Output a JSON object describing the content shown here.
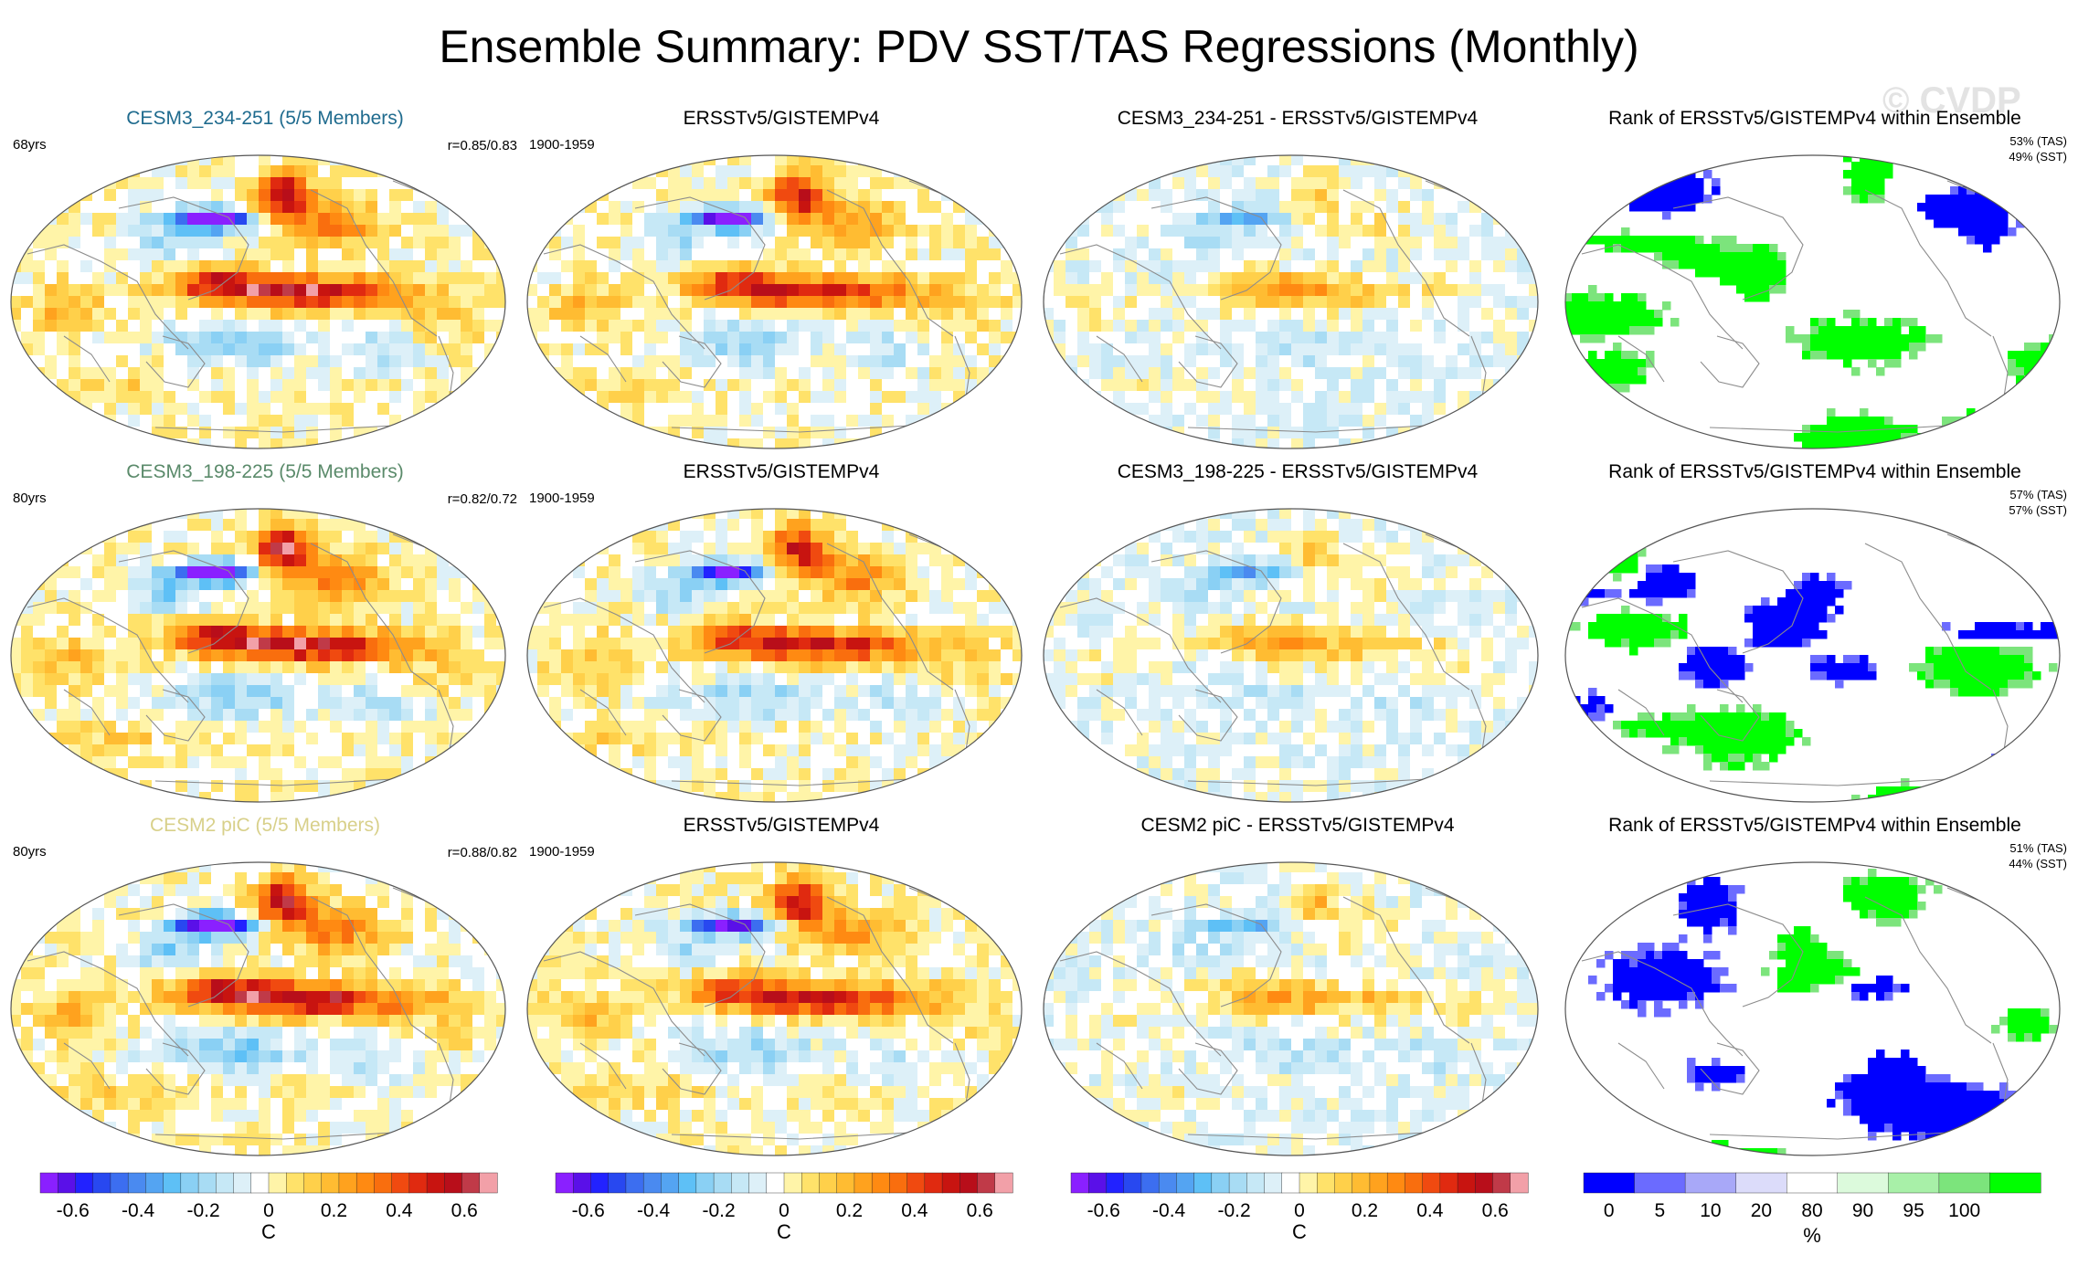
{
  "title": "Ensemble Summary: PDV SST/TAS Regressions (Monthly)",
  "watermark": "© CVDP",
  "rows": [
    {
      "model": "CESM3_234-251 (5/5 Members)",
      "model_color": "#1f6b8e",
      "years": "68yrs",
      "pattern_corr": "r=0.85/0.83",
      "obs_title": "ERSSTv5/GISTEMPv4",
      "obs_period": "1900-1959",
      "diff_title": "CESM3_234-251 - ERSSTv5/GISTEMPv4",
      "rank_title": "Rank of ERSSTv5/GISTEMPv4 within Ensemble",
      "rank_tas": "53% (TAS)",
      "rank_sst": "49% (SST)"
    },
    {
      "model": "CESM3_198-225 (5/5 Members)",
      "model_color": "#5a8a6a",
      "years": "80yrs",
      "pattern_corr": "r=0.82/0.72",
      "obs_title": "ERSSTv5/GISTEMPv4",
      "obs_period": "1900-1959",
      "diff_title": "CESM3_198-225 - ERSSTv5/GISTEMPv4",
      "rank_title": "Rank of ERSSTv5/GISTEMPv4 within Ensemble",
      "rank_tas": "57% (TAS)",
      "rank_sst": "57% (SST)"
    },
    {
      "model": "CESM2 piC (5/5 Members)",
      "model_color": "#d8d08a",
      "years": "80yrs",
      "pattern_corr": "r=0.88/0.82",
      "obs_title": "ERSSTv5/GISTEMPv4",
      "obs_period": "1900-1959",
      "diff_title": "CESM2 piC - ERSSTv5/GISTEMPv4",
      "rank_title": "Rank of ERSSTv5/GISTEMPv4 within Ensemble",
      "rank_tas": "51% (TAS)",
      "rank_sst": "44% (SST)"
    }
  ],
  "chart_data": {
    "type": "heatmap",
    "projection": "Robinson, Pacific-centered",
    "variables": [
      "SST",
      "TAS"
    ],
    "regression_colorbar": {
      "levels": [
        -0.7,
        -0.65,
        -0.6,
        -0.55,
        -0.5,
        -0.45,
        -0.4,
        -0.35,
        -0.3,
        -0.25,
        -0.2,
        -0.15,
        -0.1,
        -0.05,
        0,
        0.05,
        0.1,
        0.15,
        0.2,
        0.25,
        0.3,
        0.35,
        0.4,
        0.45,
        0.5,
        0.55,
        0.6,
        0.65,
        0.7
      ],
      "tick_labels": [
        "-0.6",
        "-0.4",
        "-0.2",
        "0",
        "0.2",
        "0.4",
        "0.6"
      ],
      "tick_values": [
        -0.6,
        -0.4,
        -0.2,
        0,
        0.2,
        0.4,
        0.6
      ],
      "units": "C",
      "colors": [
        "#8a20ff",
        "#5a10e8",
        "#2222ff",
        "#2848f0",
        "#3c6ef0",
        "#4a8af0",
        "#54a4f2",
        "#5ec0f6",
        "#8ad0f4",
        "#a8dcf4",
        "#c6e8f6",
        "#ddf0f8",
        "#ffffff",
        "#fff4a8",
        "#ffe26a",
        "#ffd04a",
        "#ffbc32",
        "#ffa21e",
        "#ff8a12",
        "#f96e0e",
        "#f04a10",
        "#e02a10",
        "#c81410",
        "#b80e1a",
        "#c03a48",
        "#f2a0a8"
      ]
    },
    "rank_colorbar": {
      "tick_labels": [
        "0",
        "5",
        "10",
        "20",
        "80",
        "90",
        "95",
        "100"
      ],
      "tick_values": [
        0,
        5,
        10,
        20,
        80,
        90,
        95,
        100
      ],
      "units": "%",
      "colors": [
        "#0000ff",
        "#6b6bff",
        "#a8a8f8",
        "#dcdcfa",
        "#ffffff",
        "#dcfadc",
        "#a8f0a8",
        "#7ce47c",
        "#00ff00"
      ]
    },
    "columns": [
      "model regression",
      "observed regression",
      "model minus observed difference",
      "rank of observations within ensemble"
    ]
  }
}
